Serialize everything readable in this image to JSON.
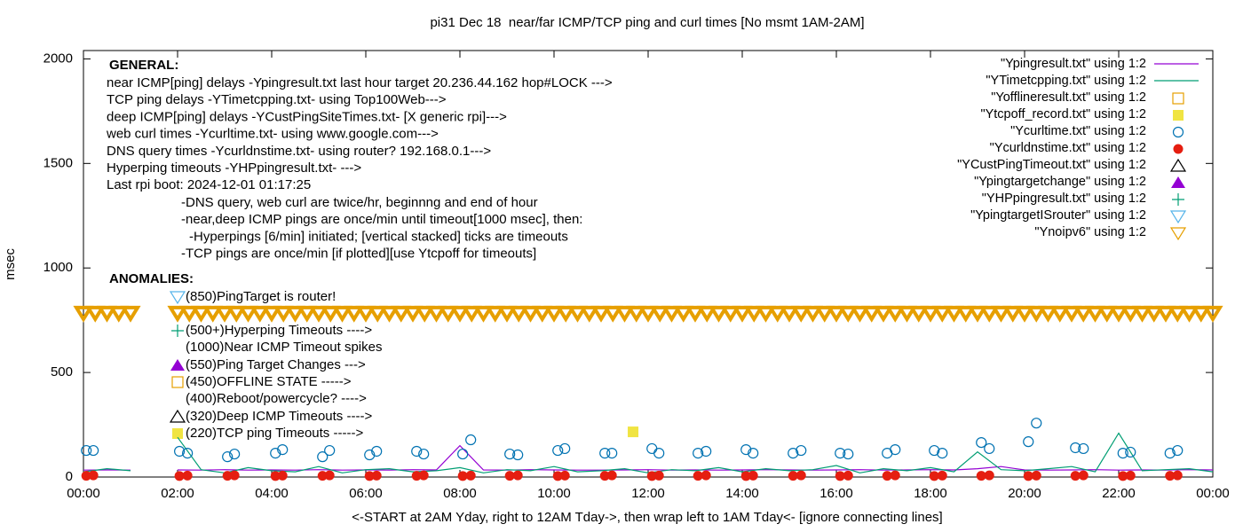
{
  "chart_data": {
    "type": "line",
    "title": "pi31 Dec 18  near/far ICMP/TCP ping and curl times [No msmt 1AM-2AM]",
    "x_label": "<-START at 2AM Yday, right to 12AM Tday->, then wrap left to 1AM Tday<- [ignore connecting lines]",
    "y_label": "msec",
    "xlim": [
      0,
      24
    ],
    "ylim": [
      0,
      2040
    ],
    "xticks": [
      {
        "value": 0,
        "label": "00:00"
      },
      {
        "value": 2,
        "label": "02:00"
      },
      {
        "value": 4,
        "label": "04:00"
      },
      {
        "value": 6,
        "label": "06:00"
      },
      {
        "value": 8,
        "label": "08:00"
      },
      {
        "value": 10,
        "label": "10:00"
      },
      {
        "value": 12,
        "label": "12:00"
      },
      {
        "value": 14,
        "label": "14:00"
      },
      {
        "value": 16,
        "label": "16:00"
      },
      {
        "value": 18,
        "label": "18:00"
      },
      {
        "value": 20,
        "label": "20:00"
      },
      {
        "value": 22,
        "label": "22:00"
      },
      {
        "value": 24,
        "label": "00:00"
      }
    ],
    "yticks": [
      0,
      500,
      1000,
      1500,
      2000
    ],
    "legend": "top-right",
    "general_title": "GENERAL:",
    "general": [
      "near ICMP[ping] delays -Ypingresult.txt last hour target 20.236.44.162 hop#LOCK --->",
      "TCP ping delays -YTimetcpping.txt- using Top100Web--->",
      "deep ICMP[ping] delays -YCustPingSiteTimes.txt- [X generic rpi]--->",
      "web curl times -Ycurltime.txt- using www.google.com--->",
      "DNS query times -Ycurldnstime.txt- using router? 192.168.0.1--->",
      "Hyperping timeouts -YHPpingresult.txt- --->",
      "Last rpi boot: 2024-12-01 01:17:25"
    ],
    "notes": [
      "-DNS query, web curl are twice/hr, beginnng and end of hour",
      "-near,deep ICMP pings are once/min until timeout[1000 msec], then:",
      "-Hyperpings [6/min] initiated; [vertical stacked] ticks are timeouts",
      "-TCP pings are once/min [if plotted][use Ytcpoff for timeouts]"
    ],
    "anomalies_title": "ANOMALIES:",
    "anomalies": [
      "(850)PingTarget is router!",
      "(500+)Hyperping Timeouts ---->",
      "(1000)Near ICMP Timeout spikes",
      "(550)Ping Target Changes --->",
      "(450)OFFLINE STATE ----->",
      "(400)Reboot/powercycle? ---->",
      "(320)Deep ICMP Timeouts ---->",
      "(220)TCP ping Timeouts ----->"
    ],
    "series": [
      {
        "name": "\"Ypingresult.txt\" using 1:2",
        "color": "#9400d3",
        "marker": "line",
        "x": [
          0,
          0.5,
          1,
          1.5,
          2,
          2.5,
          3,
          3.5,
          4,
          4.5,
          5,
          5.5,
          6,
          6.5,
          7,
          7.5,
          8,
          8.5,
          9,
          9.5,
          10,
          10.5,
          11,
          11.5,
          12,
          12.5,
          13,
          13.5,
          14,
          14.5,
          15,
          15.5,
          16,
          16.5,
          17,
          17.5,
          18,
          18.5,
          19,
          19.5,
          20,
          20.5,
          21,
          21.5,
          22,
          22.5,
          23,
          23.5,
          24
        ],
        "values": [
          33,
          34,
          33,
          null,
          34,
          33,
          35,
          33,
          34,
          33,
          35,
          33,
          34,
          33,
          35,
          34,
          150,
          34,
          33,
          35,
          34,
          33,
          33,
          34,
          35,
          33,
          34,
          33,
          34,
          35,
          34,
          33,
          34,
          35,
          33,
          34,
          35,
          34,
          40,
          50,
          34,
          33,
          34,
          35,
          33,
          34,
          33,
          35,
          34
        ]
      },
      {
        "name": "\"YTimetcpping.txt\" using 1:2",
        "color": "#009e73",
        "marker": "line",
        "x": [
          0,
          0.5,
          1,
          1.5,
          2,
          2.5,
          3,
          3.5,
          4,
          4.5,
          5,
          5.5,
          6,
          6.5,
          7,
          7.5,
          8,
          8.5,
          9,
          9.5,
          10,
          10.5,
          11,
          11.5,
          12,
          12.5,
          13,
          13.5,
          14,
          14.5,
          15,
          15.5,
          16,
          16.5,
          17,
          17.5,
          18,
          18.5,
          19,
          19.5,
          20,
          20.5,
          21,
          21.5,
          22,
          22.5,
          23,
          23.5,
          24
        ],
        "values": [
          25,
          40,
          30,
          null,
          190,
          35,
          20,
          45,
          30,
          25,
          50,
          20,
          35,
          40,
          25,
          30,
          45,
          20,
          35,
          30,
          50,
          25,
          30,
          40,
          20,
          35,
          30,
          45,
          25,
          40,
          30,
          35,
          55,
          20,
          40,
          30,
          45,
          25,
          120,
          35,
          30,
          40,
          50,
          25,
          210,
          30,
          35,
          40,
          25
        ]
      },
      {
        "name": "\"Yofflineresult.txt\" using 1:2",
        "color": "#e69f00",
        "marker": "square-open",
        "x": [],
        "values": []
      },
      {
        "name": "\"Ytcpoff_record.txt\" using 1:2",
        "color": "#f0e442",
        "marker": "square",
        "x": [
          11.68
        ],
        "values": [
          216
        ]
      },
      {
        "name": "\"Ycurltime.txt\" using 1:2",
        "color": "#0072b2",
        "marker": "circle-open",
        "x": [
          0.06,
          0.21,
          2.04,
          2.21,
          3.06,
          3.21,
          4.08,
          4.23,
          5.08,
          5.23,
          6.08,
          6.23,
          7.08,
          7.23,
          8.06,
          8.23,
          9.06,
          9.23,
          10.08,
          10.23,
          11.08,
          11.23,
          12.08,
          12.23,
          13.06,
          13.23,
          14.08,
          14.23,
          15.08,
          15.25,
          16.08,
          16.25,
          17.08,
          17.25,
          18.08,
          18.25,
          19.08,
          19.25,
          20.08,
          20.25,
          21.08,
          21.25,
          22.09,
          22.25,
          23.09,
          23.25
        ],
        "values": [
          127,
          127,
          123,
          114,
          97,
          110,
          114,
          131,
          97,
          127,
          106,
          123,
          123,
          110,
          110,
          178,
          110,
          106,
          127,
          136,
          114,
          114,
          136,
          114,
          114,
          123,
          131,
          114,
          114,
          127,
          114,
          110,
          114,
          131,
          127,
          114,
          165,
          136,
          169,
          258,
          140,
          136,
          114,
          119,
          114,
          127
        ]
      },
      {
        "name": "\"Ycurldnstime.txt\" using 1:2",
        "color": "#e51e10",
        "marker": "circle",
        "x": [
          0.06,
          0.21,
          2.04,
          2.21,
          3.06,
          3.21,
          4.08,
          4.23,
          5.08,
          5.23,
          6.08,
          6.23,
          7.08,
          7.23,
          8.06,
          8.23,
          9.06,
          9.23,
          10.08,
          10.23,
          11.08,
          11.23,
          12.08,
          12.23,
          13.06,
          13.23,
          14.08,
          14.23,
          15.08,
          15.25,
          16.08,
          16.25,
          17.08,
          17.25,
          18.08,
          18.25,
          19.08,
          19.25,
          20.08,
          20.25,
          21.08,
          21.25,
          22.09,
          22.25,
          23.09,
          23.25
        ],
        "values": [
          6,
          8,
          5,
          7,
          6,
          8,
          5,
          7,
          6,
          8,
          5,
          7,
          6,
          8,
          5,
          7,
          6,
          8,
          5,
          7,
          6,
          8,
          5,
          7,
          6,
          8,
          5,
          7,
          6,
          8,
          5,
          7,
          6,
          8,
          5,
          7,
          6,
          8,
          5,
          7,
          6,
          8,
          5,
          7,
          6,
          8
        ]
      },
      {
        "name": "\"YCustPingTimeout.txt\" using 1:2",
        "color": "#000000",
        "marker": "triangle-open",
        "x": [],
        "values": []
      },
      {
        "name": "\"Ypingtargetchange\" using 1:2",
        "color": "#9400d3",
        "marker": "triangle",
        "x": [],
        "values": []
      },
      {
        "name": "\"YHPpingresult.txt\" using 1:2",
        "color": "#009e73",
        "marker": "plus",
        "x": [],
        "values": []
      },
      {
        "name": "\"YpingtargetISrouter\" using 1:2",
        "color": "#56b4e9",
        "marker": "triangle-down-open",
        "x": [],
        "values": []
      },
      {
        "name": "\"Ynoipv6\" using 1:2",
        "color": "#e69f00",
        "marker": "triangle-down-open",
        "x": [
          0,
          0.25,
          0.5,
          0.75,
          1,
          2,
          2.25,
          2.5,
          2.75,
          3,
          3.25,
          3.5,
          3.75,
          4,
          4.25,
          4.5,
          4.75,
          5,
          5.25,
          5.5,
          5.75,
          6,
          6.25,
          6.5,
          6.75,
          7,
          7.25,
          7.5,
          7.75,
          8,
          8.25,
          8.5,
          8.75,
          9,
          9.25,
          9.5,
          9.75,
          10,
          10.25,
          10.5,
          10.75,
          11,
          11.25,
          11.5,
          11.75,
          12,
          12.25,
          12.5,
          12.75,
          13,
          13.25,
          13.5,
          13.75,
          14,
          14.25,
          14.5,
          14.75,
          15,
          15.25,
          15.5,
          15.75,
          16,
          16.25,
          16.5,
          16.75,
          17,
          17.25,
          17.5,
          17.75,
          18,
          18.25,
          18.5,
          18.75,
          19,
          19.25,
          19.5,
          19.75,
          20,
          20.25,
          20.5,
          20.75,
          21,
          21.25,
          21.5,
          21.75,
          22,
          22.25,
          22.5,
          22.75,
          23,
          23.25,
          23.5,
          23.75,
          24
        ],
        "values": [
          785,
          785,
          785,
          785,
          785,
          785,
          785,
          785,
          785,
          785,
          785,
          785,
          785,
          785,
          785,
          785,
          785,
          785,
          785,
          785,
          785,
          785,
          785,
          785,
          785,
          785,
          785,
          785,
          785,
          785,
          785,
          785,
          785,
          785,
          785,
          785,
          785,
          785,
          785,
          785,
          785,
          785,
          785,
          785,
          785,
          785,
          785,
          785,
          785,
          785,
          785,
          785,
          785,
          785,
          785,
          785,
          785,
          785,
          785,
          785,
          785,
          785,
          785,
          785,
          785,
          785,
          785,
          785,
          785,
          785,
          785,
          785,
          785,
          785,
          785,
          785,
          785,
          785,
          785,
          785,
          785,
          785,
          785,
          785,
          785,
          785,
          785,
          785,
          785,
          785,
          785,
          785,
          785,
          785
        ]
      }
    ]
  }
}
